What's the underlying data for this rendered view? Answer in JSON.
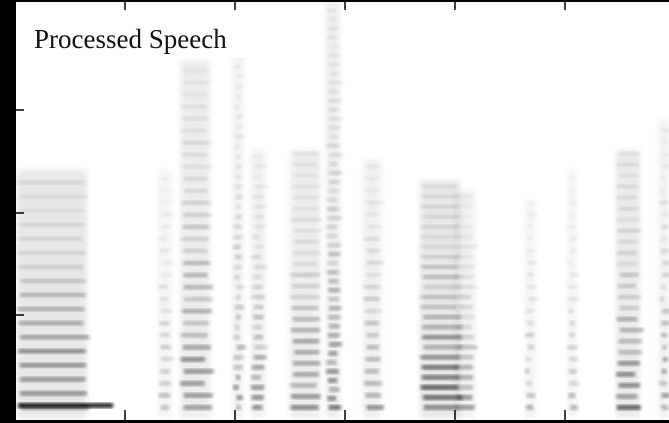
{
  "title": "Processed Speech"
}
